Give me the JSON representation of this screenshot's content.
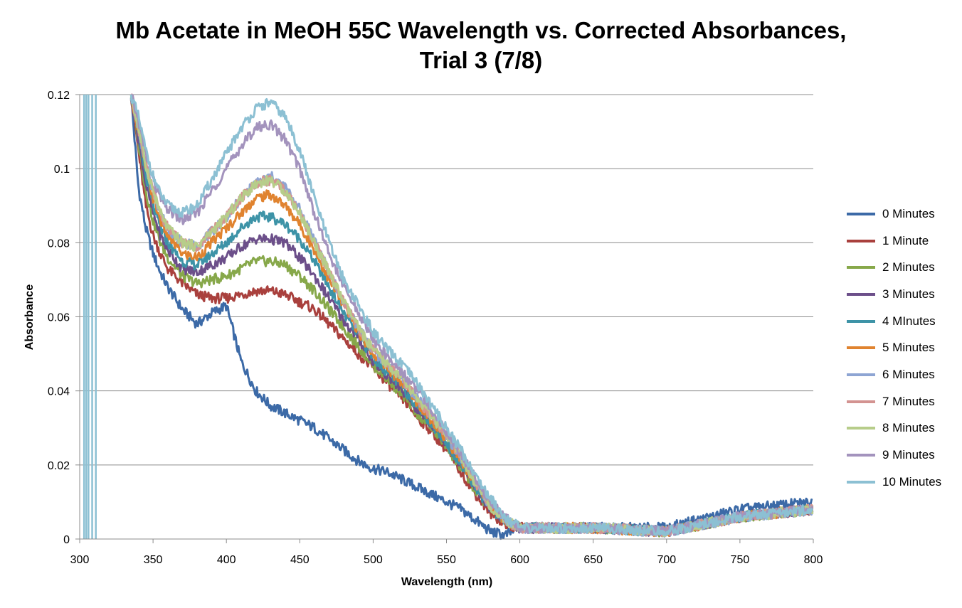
{
  "chart_data": {
    "type": "line",
    "title_line1": "Mb Acetate in MeOH 55C Wavelength vs. Corrected Absorbances,",
    "title_line2": "Trial 3 (7/8)",
    "xlabel": "Wavelength (nm)",
    "ylabel": "Absorbance",
    "xlim": [
      300,
      800
    ],
    "ylim": [
      0,
      0.12
    ],
    "xticks": [
      "300",
      "350",
      "400",
      "450",
      "500",
      "550",
      "600",
      "650",
      "700",
      "750",
      "800"
    ],
    "yticks": [
      "0",
      "0.02",
      "0.04",
      "0.06",
      "0.08",
      "0.1",
      "0.12"
    ],
    "grid": "horizontal",
    "legend_position": "right",
    "x": [
      335,
      340,
      345,
      350,
      355,
      360,
      370,
      380,
      390,
      400,
      410,
      420,
      430,
      440,
      450,
      460,
      470,
      480,
      490,
      500,
      510,
      520,
      530,
      540,
      550,
      560,
      570,
      580,
      590,
      600,
      620,
      650,
      700,
      750,
      800
    ],
    "series": [
      {
        "name": "0 Minutes",
        "color": "#3c6aa7",
        "values": [
          0.12,
          0.095,
          0.084,
          0.077,
          0.072,
          0.068,
          0.062,
          0.058,
          0.061,
          0.063,
          0.048,
          0.04,
          0.036,
          0.034,
          0.032,
          0.03,
          0.027,
          0.024,
          0.021,
          0.019,
          0.018,
          0.016,
          0.014,
          0.012,
          0.01,
          0.008,
          0.005,
          0.002,
          0.001,
          0.003,
          0.003,
          0.003,
          0.003,
          0.008,
          0.01
        ]
      },
      {
        "name": "1 Minute",
        "color": "#a9403d",
        "values": [
          0.12,
          0.105,
          0.09,
          0.082,
          0.077,
          0.073,
          0.069,
          0.066,
          0.065,
          0.065,
          0.066,
          0.067,
          0.067,
          0.066,
          0.064,
          0.062,
          0.058,
          0.054,
          0.05,
          0.046,
          0.042,
          0.038,
          0.033,
          0.029,
          0.024,
          0.018,
          0.012,
          0.007,
          0.004,
          0.003,
          0.003,
          0.003,
          0.002,
          0.006,
          0.008
        ]
      },
      {
        "name": "2 Minutes",
        "color": "#87a84a",
        "values": [
          0.12,
          0.107,
          0.094,
          0.086,
          0.08,
          0.076,
          0.071,
          0.069,
          0.07,
          0.071,
          0.073,
          0.075,
          0.075,
          0.074,
          0.071,
          0.067,
          0.062,
          0.057,
          0.052,
          0.047,
          0.043,
          0.039,
          0.034,
          0.03,
          0.025,
          0.019,
          0.013,
          0.008,
          0.005,
          0.003,
          0.003,
          0.003,
          0.002,
          0.006,
          0.008
        ]
      },
      {
        "name": "3 Minutes",
        "color": "#6c4f8a",
        "values": [
          0.12,
          0.108,
          0.096,
          0.088,
          0.082,
          0.078,
          0.073,
          0.072,
          0.074,
          0.076,
          0.079,
          0.081,
          0.081,
          0.08,
          0.076,
          0.071,
          0.065,
          0.059,
          0.054,
          0.048,
          0.044,
          0.04,
          0.035,
          0.031,
          0.026,
          0.02,
          0.014,
          0.008,
          0.005,
          0.003,
          0.003,
          0.003,
          0.002,
          0.006,
          0.008
        ]
      },
      {
        "name": "4 MInutes",
        "color": "#3d93a7",
        "values": [
          0.12,
          0.109,
          0.098,
          0.09,
          0.084,
          0.08,
          0.075,
          0.074,
          0.077,
          0.08,
          0.084,
          0.087,
          0.087,
          0.085,
          0.081,
          0.075,
          0.068,
          0.061,
          0.055,
          0.049,
          0.045,
          0.041,
          0.036,
          0.031,
          0.026,
          0.02,
          0.014,
          0.008,
          0.005,
          0.003,
          0.003,
          0.003,
          0.002,
          0.006,
          0.008
        ]
      },
      {
        "name": "5 Minutes",
        "color": "#e0832f",
        "values": [
          0.12,
          0.11,
          0.1,
          0.092,
          0.086,
          0.082,
          0.077,
          0.076,
          0.08,
          0.084,
          0.088,
          0.092,
          0.093,
          0.09,
          0.085,
          0.078,
          0.07,
          0.063,
          0.056,
          0.05,
          0.046,
          0.042,
          0.037,
          0.032,
          0.027,
          0.021,
          0.015,
          0.009,
          0.005,
          0.003,
          0.003,
          0.003,
          0.002,
          0.006,
          0.008
        ]
      },
      {
        "name": "6 Minutes",
        "color": "#8ea5d3",
        "values": [
          0.12,
          0.111,
          0.101,
          0.094,
          0.088,
          0.084,
          0.08,
          0.079,
          0.083,
          0.087,
          0.092,
          0.096,
          0.098,
          0.095,
          0.089,
          0.081,
          0.072,
          0.064,
          0.057,
          0.051,
          0.047,
          0.043,
          0.038,
          0.033,
          0.028,
          0.022,
          0.015,
          0.009,
          0.005,
          0.003,
          0.003,
          0.003,
          0.002,
          0.006,
          0.008
        ]
      },
      {
        "name": "7 Minutes",
        "color": "#d39391",
        "values": [
          0.12,
          0.111,
          0.101,
          0.094,
          0.088,
          0.084,
          0.08,
          0.079,
          0.083,
          0.087,
          0.092,
          0.096,
          0.097,
          0.094,
          0.088,
          0.08,
          0.072,
          0.064,
          0.057,
          0.051,
          0.047,
          0.043,
          0.038,
          0.033,
          0.028,
          0.022,
          0.015,
          0.009,
          0.005,
          0.003,
          0.003,
          0.003,
          0.002,
          0.006,
          0.008
        ]
      },
      {
        "name": "8 Minutes",
        "color": "#b7cd8a",
        "values": [
          0.12,
          0.111,
          0.101,
          0.094,
          0.088,
          0.084,
          0.08,
          0.079,
          0.083,
          0.087,
          0.092,
          0.096,
          0.097,
          0.094,
          0.088,
          0.08,
          0.072,
          0.064,
          0.057,
          0.051,
          0.047,
          0.043,
          0.038,
          0.033,
          0.028,
          0.022,
          0.015,
          0.009,
          0.005,
          0.003,
          0.003,
          0.003,
          0.002,
          0.006,
          0.008
        ]
      },
      {
        "name": "9 Minutes",
        "color": "#a393bd",
        "values": [
          0.12,
          0.113,
          0.104,
          0.097,
          0.092,
          0.089,
          0.086,
          0.088,
          0.094,
          0.1,
          0.106,
          0.111,
          0.112,
          0.108,
          0.1,
          0.088,
          0.077,
          0.068,
          0.061,
          0.054,
          0.049,
          0.045,
          0.04,
          0.035,
          0.029,
          0.023,
          0.016,
          0.01,
          0.006,
          0.003,
          0.003,
          0.003,
          0.002,
          0.006,
          0.008
        ]
      },
      {
        "name": "10 Minutes",
        "color": "#8cc0d3",
        "values": [
          0.12,
          0.114,
          0.105,
          0.098,
          0.093,
          0.09,
          0.088,
          0.09,
          0.097,
          0.104,
          0.111,
          0.116,
          0.118,
          0.114,
          0.105,
          0.092,
          0.08,
          0.07,
          0.063,
          0.056,
          0.051,
          0.047,
          0.042,
          0.036,
          0.03,
          0.024,
          0.017,
          0.011,
          0.006,
          0.003,
          0.003,
          0.003,
          0.002,
          0.006,
          0.008
        ]
      }
    ]
  }
}
